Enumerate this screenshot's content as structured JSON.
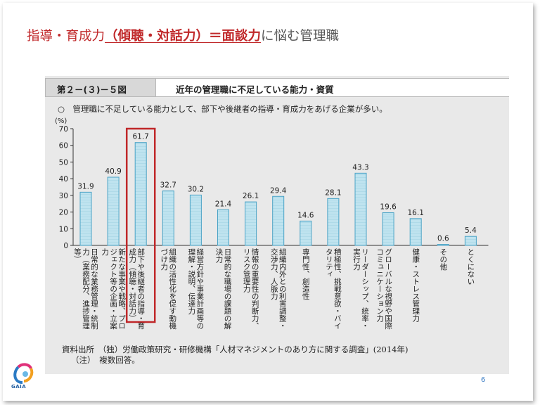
{
  "slide": {
    "title_part1": "指導・育成力",
    "title_part2": "（傾聴・対話力）＝面談力",
    "title_part3": "に悩む管理職",
    "page_number": "6",
    "logo_text": "GAIA"
  },
  "figure": {
    "number": "第２－(３)－５図",
    "title": "近年の管理職に不足している能力・資質",
    "subtitle": "○　管理職に不足している能力として、部下や後継者の指導・育成力をあげる企業が多い。"
  },
  "footer": {
    "source_label": "資料出所",
    "source_text": "（独）労働政策研究・研修機構「人材マネジメントのあり方に関する調査」(2014年)",
    "note_label": "（注）",
    "note_text": "複数回答。"
  },
  "colors": {
    "title_red": "#c0282a",
    "bar_fill": "#bfe3ef",
    "bar_stroke": "#4aa3c6",
    "highlight": "#c0282a"
  },
  "chart_data": {
    "type": "bar",
    "unit_label": "(%)",
    "ylim": [
      0,
      70
    ],
    "yticks": [
      "0",
      "10",
      "20",
      "30",
      "40",
      "50",
      "60",
      "70"
    ],
    "categories": [
      "日常的な業務管理・統制力（業務配分、進捗管理等）",
      "新たな事業や戦略、プロジェクト等の企画・立案力",
      "部下や後継者の指導・育成力（傾聴・対話力）",
      "組織の活性化を促す動機づけ力",
      "経営方針や事業計画等の理解・説明、伝達力",
      "日常的な職場の課題の解決力",
      "情報の重要性の判断力、リスク管理力",
      "組織内外との利害調整・交渉力、人脈力",
      "専門性、創造性",
      "積極性、挑戦意欲・バイタリティ",
      "リーダーシップ、統率・実行力",
      "グローバルな視野や国際コミュニケーション力",
      "健康・ストレス管理力",
      "その他",
      "とくにない"
    ],
    "value_labels": [
      "31.9",
      "40.9",
      "61.7",
      "32.7",
      "30.2",
      "21.4",
      "26.1",
      "29.4",
      "14.6",
      "28.1",
      "43.3",
      "19.6",
      "16.1",
      "0.6",
      "5.4"
    ],
    "values": [
      31.9,
      40.9,
      61.7,
      32.7,
      30.2,
      21.4,
      26.1,
      29.4,
      14.6,
      28.1,
      43.3,
      19.6,
      16.1,
      0.6,
      5.4
    ],
    "highlight_index": 2,
    "grid": false
  }
}
